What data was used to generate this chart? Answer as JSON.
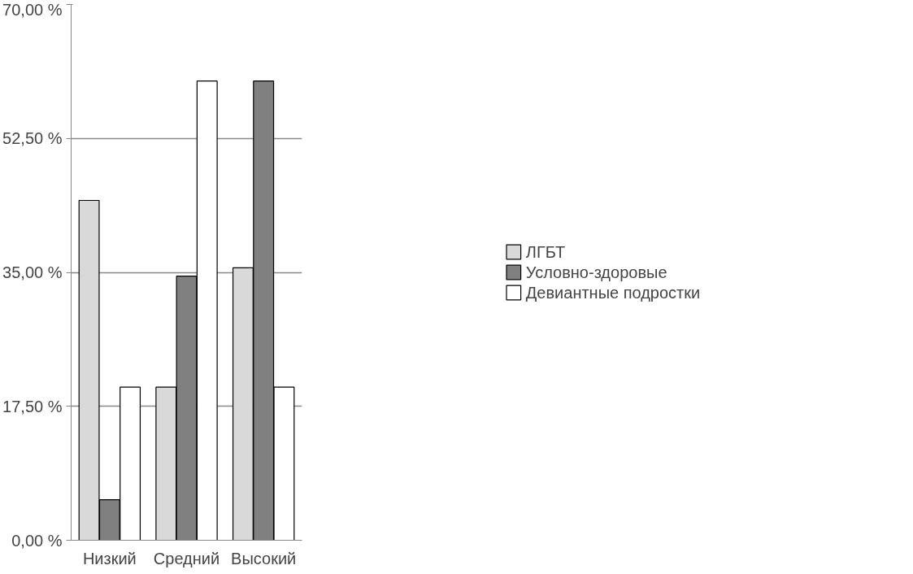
{
  "chart_data": {
    "type": "bar",
    "categories": [
      "Низкий",
      "Средний",
      "Высокий"
    ],
    "series": [
      {
        "name": "ЛГБТ",
        "color": "#d9d9d9",
        "values": [
          44.4,
          20,
          35.6
        ]
      },
      {
        "name": "Условно-здоровые",
        "color": "#808080",
        "values": [
          5.3,
          34.5,
          60
        ]
      },
      {
        "name": "Девиантные подростки",
        "color": "#ffffff",
        "values": [
          20,
          60,
          20
        ]
      }
    ],
    "ylim": [
      0,
      70
    ],
    "yticks": [
      {
        "value": 0,
        "label": "0,00 %"
      },
      {
        "value": 17.5,
        "label": "17,50 %"
      },
      {
        "value": 35,
        "label": "35,00 %"
      },
      {
        "value": 52.5,
        "label": "52,50 %"
      },
      {
        "value": 70,
        "label": "70,00 %"
      }
    ],
    "grid": "y",
    "legend": "right"
  }
}
